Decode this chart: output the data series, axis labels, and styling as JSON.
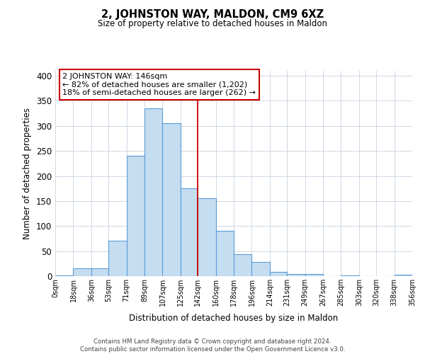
{
  "title": "2, JOHNSTON WAY, MALDON, CM9 6XZ",
  "subtitle": "Size of property relative to detached houses in Maldon",
  "xlabel": "Distribution of detached houses by size in Maldon",
  "ylabel": "Number of detached properties",
  "bar_color": "#c5ddf0",
  "bar_edge_color": "#5b9bd5",
  "bin_edges": [
    0,
    18,
    36,
    53,
    71,
    89,
    107,
    125,
    142,
    160,
    178,
    196,
    214,
    231,
    249,
    267,
    285,
    303,
    320,
    338,
    356
  ],
  "bin_labels": [
    "0sqm",
    "18sqm",
    "36sqm",
    "53sqm",
    "71sqm",
    "89sqm",
    "107sqm",
    "125sqm",
    "142sqm",
    "160sqm",
    "178sqm",
    "196sqm",
    "214sqm",
    "231sqm",
    "249sqm",
    "267sqm",
    "285sqm",
    "303sqm",
    "320sqm",
    "338sqm",
    "356sqm"
  ],
  "counts": [
    2,
    15,
    15,
    70,
    240,
    335,
    305,
    175,
    155,
    90,
    44,
    28,
    9,
    4,
    4,
    0,
    2,
    0,
    0,
    3
  ],
  "ylim": [
    0,
    410
  ],
  "yticks": [
    0,
    50,
    100,
    150,
    200,
    250,
    300,
    350,
    400
  ],
  "property_line_x": 142,
  "property_line_color": "#cc0000",
  "annotation_title": "2 JOHNSTON WAY: 146sqm",
  "annotation_line1": "← 82% of detached houses are smaller (1,202)",
  "annotation_line2": "18% of semi-detached houses are larger (262) →",
  "footer_line1": "Contains HM Land Registry data © Crown copyright and database right 2024.",
  "footer_line2": "Contains public sector information licensed under the Open Government Licence v3.0.",
  "background_color": "#ffffff",
  "grid_color": "#d0d8e4"
}
